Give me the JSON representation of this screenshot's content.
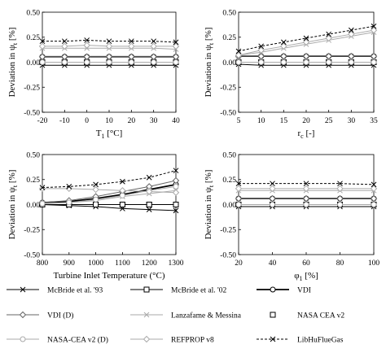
{
  "chart_data": [
    {
      "type": "line",
      "xlabel": "T1 [°C]",
      "xlabel_main": "T",
      "xlabel_sub": "1",
      "xlabel_rest": " [°C]",
      "ylabel": "Deviation in ψt [%]",
      "ylabel_main": "Deviation in ψ",
      "ylabel_sub": "t",
      "ylabel_rest": " [%]",
      "x": [
        -20,
        -10,
        0,
        10,
        20,
        30,
        40
      ],
      "xlim": [
        -20,
        40
      ],
      "xticks": [
        "-20",
        "-10",
        "0",
        "10",
        "20",
        "30",
        "40"
      ],
      "ylim": [
        -0.5,
        0.5
      ],
      "yticks": [
        "0.50",
        "0.25",
        "0.00",
        "-0.25",
        "-0.50"
      ],
      "series": [
        {
          "name": "McBride et al. '93",
          "values": [
            -0.03,
            -0.03,
            -0.03,
            -0.03,
            -0.03,
            -0.03,
            -0.03
          ]
        },
        {
          "name": "McBride et al. '02",
          "values": [
            0.0,
            0.0,
            0.0,
            0.0,
            0.0,
            0.0,
            0.0
          ]
        },
        {
          "name": "VDI",
          "values": [
            0.055,
            0.055,
            0.055,
            0.055,
            0.055,
            0.055,
            0.055
          ]
        },
        {
          "name": "VDI (D)",
          "values": [
            0.055,
            0.055,
            0.055,
            0.055,
            0.055,
            0.055,
            0.055
          ]
        },
        {
          "name": "Lanzafame & Messina",
          "values": [
            0.14,
            0.14,
            0.14,
            0.14,
            0.14,
            0.14,
            0.13
          ]
        },
        {
          "name": "NASA CEA v2",
          "values": [
            0.0,
            0.0,
            0.0,
            0.0,
            0.0,
            0.0,
            0.0
          ]
        },
        {
          "name": "NASA-CEA v2 (D)",
          "values": [
            0.0,
            0.0,
            0.0,
            0.0,
            0.0,
            0.0,
            0.0
          ]
        },
        {
          "name": "REFPROP v8",
          "values": [
            0.16,
            0.16,
            0.17,
            0.16,
            0.16,
            0.16,
            0.16
          ]
        },
        {
          "name": "LibHuFlueGas",
          "values": [
            0.21,
            0.21,
            0.22,
            0.21,
            0.21,
            0.21,
            0.2
          ]
        }
      ]
    },
    {
      "type": "line",
      "xlabel": "rc [-]",
      "xlabel_main": "r",
      "xlabel_sub": "c",
      "xlabel_rest": " [-]",
      "ylabel": "Deviation in ψt [%]",
      "ylabel_main": "Deviation in ψ",
      "ylabel_sub": "t",
      "ylabel_rest": " [%]",
      "x": [
        5,
        10,
        15,
        20,
        25,
        30,
        35
      ],
      "xlim": [
        5,
        35
      ],
      "xticks": [
        "5",
        "10",
        "15",
        "20",
        "25",
        "30",
        "35"
      ],
      "ylim": [
        -0.5,
        0.5
      ],
      "yticks": [
        "0.50",
        "0.25",
        "0.00",
        "-0.25",
        "-0.50"
      ],
      "series": [
        {
          "name": "McBride et al. '93",
          "values": [
            -0.02,
            -0.03,
            -0.03,
            -0.03,
            -0.03,
            -0.03,
            -0.03
          ]
        },
        {
          "name": "McBride et al. '02",
          "values": [
            0.0,
            0.0,
            0.0,
            0.0,
            0.0,
            0.0,
            0.0
          ]
        },
        {
          "name": "VDI",
          "values": [
            0.06,
            0.06,
            0.06,
            0.06,
            0.06,
            0.06,
            0.06
          ]
        },
        {
          "name": "VDI (D)",
          "values": [
            0.06,
            0.06,
            0.06,
            0.06,
            0.06,
            0.06,
            0.06
          ]
        },
        {
          "name": "Lanzafame & Messina",
          "values": [
            0.07,
            0.1,
            0.14,
            0.18,
            0.22,
            0.26,
            0.3
          ]
        },
        {
          "name": "NASA CEA v2",
          "values": [
            0.0,
            0.0,
            0.0,
            0.0,
            0.0,
            0.0,
            0.0
          ]
        },
        {
          "name": "NASA-CEA v2 (D)",
          "values": [
            0.0,
            0.0,
            0.0,
            0.0,
            0.0,
            0.0,
            0.0
          ]
        },
        {
          "name": "REFPROP v8",
          "values": [
            0.07,
            0.12,
            0.16,
            0.2,
            0.24,
            0.28,
            0.32
          ]
        },
        {
          "name": "LibHuFlueGas",
          "values": [
            0.11,
            0.16,
            0.2,
            0.24,
            0.28,
            0.32,
            0.36
          ]
        }
      ]
    },
    {
      "type": "line",
      "xlabel": "Turbine Inlet Temperature (°C)",
      "xlabel_main": "Turbine Inlet Temperature (°C)",
      "xlabel_sub": "",
      "xlabel_rest": "",
      "ylabel": "Deviation in ψt [%]",
      "ylabel_main": "Deviation in ψ",
      "ylabel_sub": "t",
      "ylabel_rest": " [%]",
      "x": [
        800,
        900,
        1000,
        1100,
        1200,
        1300
      ],
      "xlim": [
        800,
        1300
      ],
      "xticks": [
        "800",
        "900",
        "1000",
        "1100",
        "1200",
        "1300"
      ],
      "ylim": [
        -0.5,
        0.5
      ],
      "yticks": [
        "0.50",
        "0.25",
        "0.00",
        "-0.25",
        "-0.50"
      ],
      "series": [
        {
          "name": "McBride et al. '93",
          "values": [
            0.0,
            -0.01,
            -0.02,
            -0.04,
            -0.05,
            -0.06
          ]
        },
        {
          "name": "McBride et al. '02",
          "values": [
            0.0,
            0.0,
            0.0,
            0.0,
            0.0,
            0.0
          ]
        },
        {
          "name": "VDI",
          "values": [
            0.02,
            0.03,
            0.06,
            0.1,
            0.15,
            0.2
          ]
        },
        {
          "name": "VDI (D)",
          "values": [
            0.02,
            0.04,
            0.08,
            0.13,
            0.18,
            0.24
          ]
        },
        {
          "name": "Lanzafame & Messina",
          "values": [
            0.01,
            0.02,
            0.04,
            0.08,
            0.11,
            0.14
          ]
        },
        {
          "name": "NASA CEA v2",
          "values": [
            0.0,
            0.0,
            0.0,
            0.0,
            0.0,
            0.0
          ]
        },
        {
          "name": "NASA-CEA v2 (D)",
          "values": [
            0.01,
            0.02,
            0.05,
            0.09,
            0.14,
            0.18
          ]
        },
        {
          "name": "REFPROP v8",
          "values": [
            0.16,
            0.16,
            0.15,
            0.14,
            0.13,
            0.12
          ]
        },
        {
          "name": "LibHuFlueGas",
          "values": [
            0.17,
            0.18,
            0.2,
            0.23,
            0.27,
            0.34
          ]
        }
      ]
    },
    {
      "type": "line",
      "xlabel": "φ1 [%]",
      "xlabel_main": "φ",
      "xlabel_sub": "1",
      "xlabel_rest": " [%]",
      "ylabel": "Deviation in ψt [%]",
      "ylabel_main": "Deviation in ψ",
      "ylabel_sub": "t",
      "ylabel_rest": " [%]",
      "x": [
        20,
        40,
        60,
        80,
        100
      ],
      "xlim": [
        20,
        100
      ],
      "xticks": [
        "20",
        "40",
        "60",
        "80",
        "100"
      ],
      "ylim": [
        -0.5,
        0.5
      ],
      "yticks": [
        "0.50",
        "0.25",
        "0.00",
        "-0.25",
        "-0.50"
      ],
      "series": [
        {
          "name": "McBride et al. '93",
          "values": [
            -0.02,
            -0.02,
            -0.02,
            -0.02,
            -0.02
          ]
        },
        {
          "name": "McBride et al. '02",
          "values": [
            0.0,
            0.0,
            0.0,
            0.0,
            0.0
          ]
        },
        {
          "name": "VDI",
          "values": [
            0.06,
            0.06,
            0.06,
            0.06,
            0.06
          ]
        },
        {
          "name": "VDI (D)",
          "values": [
            0.06,
            0.06,
            0.06,
            0.06,
            0.06
          ]
        },
        {
          "name": "Lanzafame & Messina",
          "values": [
            0.14,
            0.14,
            0.14,
            0.14,
            0.14
          ]
        },
        {
          "name": "NASA CEA v2",
          "values": [
            0.0,
            0.0,
            0.0,
            0.0,
            0.0
          ]
        },
        {
          "name": "NASA-CEA v2 (D)",
          "values": [
            0.0,
            0.0,
            0.0,
            0.0,
            0.0
          ]
        },
        {
          "name": "REFPROP v8",
          "values": [
            0.16,
            0.16,
            0.16,
            0.16,
            0.16
          ]
        },
        {
          "name": "LibHuFlueGas",
          "values": [
            0.21,
            0.21,
            0.21,
            0.21,
            0.2
          ]
        }
      ]
    }
  ],
  "legend": [
    {
      "name": "McBride et al. '93",
      "marker": "x",
      "line": "solid",
      "color": "#000000"
    },
    {
      "name": "McBride et al. '02",
      "marker": "square",
      "line": "solid",
      "color": "#000000"
    },
    {
      "name": "VDI",
      "marker": "circle",
      "line": "solid-thick",
      "color": "#000000"
    },
    {
      "name": "VDI (D)",
      "marker": "diamond",
      "line": "solid",
      "color": "#666666"
    },
    {
      "name": "Lanzafame & Messina",
      "marker": "x",
      "line": "solid",
      "color": "#aaaaaa"
    },
    {
      "name": "NASA CEA v2",
      "marker": "square",
      "line": "none",
      "color": "#000000"
    },
    {
      "name": "NASA-CEA v2 (D)",
      "marker": "circle",
      "line": "solid",
      "color": "#aaaaaa"
    },
    {
      "name": "REFPROP v8",
      "marker": "diamond",
      "line": "solid",
      "color": "#aaaaaa"
    },
    {
      "name": "LibHuFlueGas",
      "marker": "x",
      "line": "dashed",
      "color": "#000000"
    }
  ]
}
